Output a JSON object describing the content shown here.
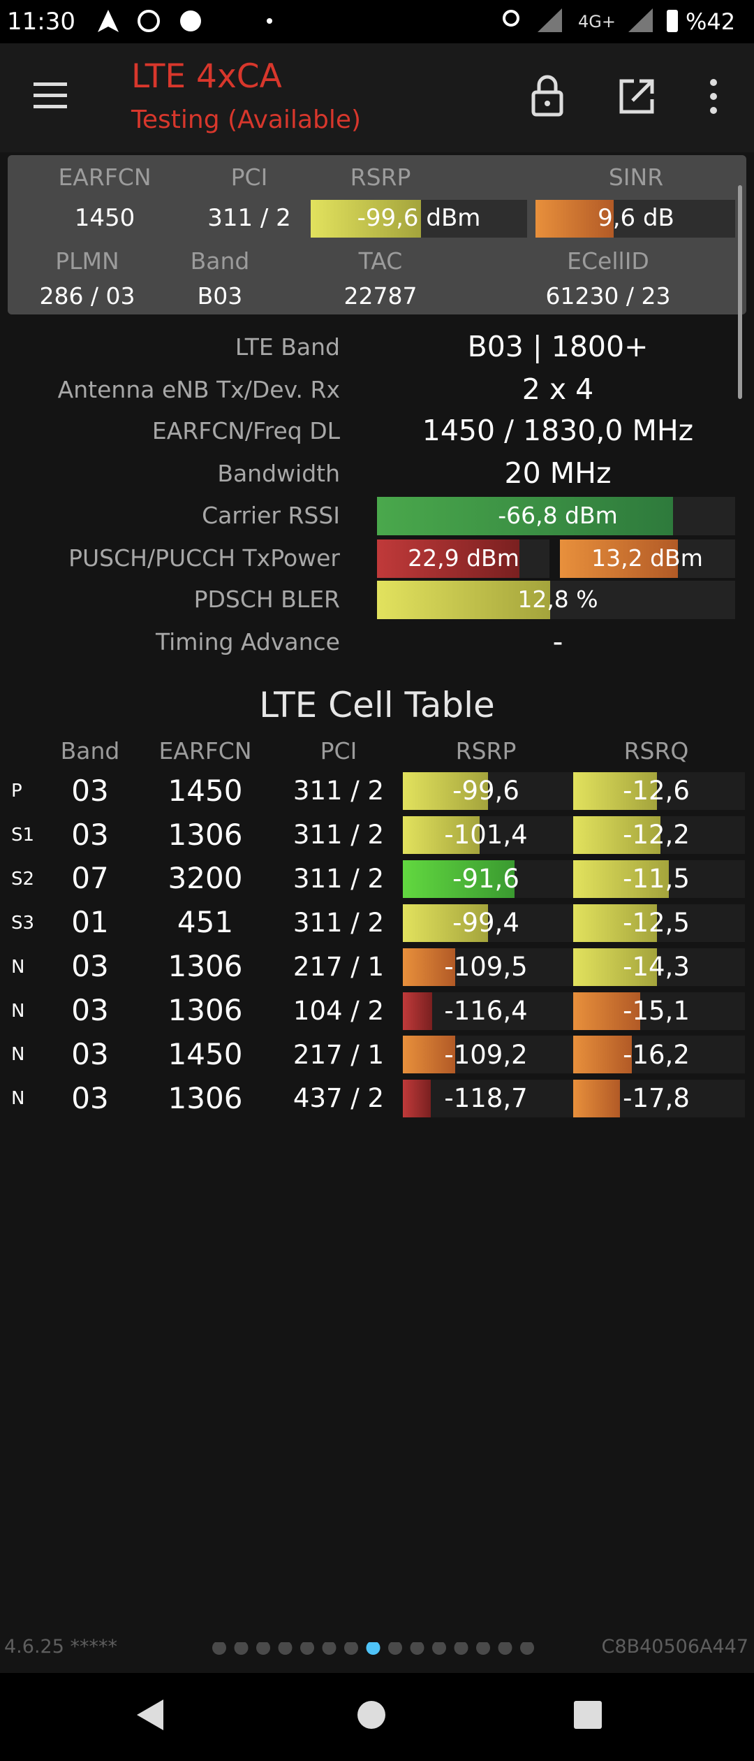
{
  "status_bar": {
    "time": "11:30",
    "network": "4G+",
    "battery": "%42"
  },
  "toolbar": {
    "title": "LTE 4xCA",
    "subtitle": "Testing (Available)"
  },
  "summary": {
    "headers": [
      "EARFCN",
      "PCI",
      "RSRP",
      "SINR"
    ],
    "values": [
      "1450",
      "311 / 2",
      "-99,6 dBm",
      "9,6 dB"
    ],
    "headers2": [
      "PLMN",
      "Band",
      "TAC",
      "ECellID"
    ],
    "values2": [
      "286 / 03",
      "B03",
      "22787",
      "61230 / 23"
    ]
  },
  "details": [
    {
      "label": "LTE Band",
      "value": "B03 | 1800+"
    },
    {
      "label": "Antenna eNB Tx/Dev. Rx",
      "value": "2 x 4"
    },
    {
      "label": "EARFCN/Freq DL",
      "value": "1450 / 1830,0 MHz"
    },
    {
      "label": "Bandwidth",
      "value": "20 MHz"
    },
    {
      "label": "Carrier RSSI",
      "value": "-66,8 dBm"
    },
    {
      "label": "PUSCH/PUCCH TxPower",
      "values": [
        "22,9 dBm",
        "13,2 dBm"
      ]
    },
    {
      "label": "PDSCH BLER",
      "value": "12,8 %"
    },
    {
      "label": "Timing Advance",
      "value": "-"
    }
  ],
  "cell_table": {
    "title": "LTE Cell Table",
    "headers": [
      "Band",
      "EARFCN",
      "PCI",
      "RSRP",
      "RSRQ"
    ],
    "rows": [
      [
        "P",
        "03",
        "1450",
        "311 / 2",
        "-99,6",
        "-12,6"
      ],
      [
        "S1",
        "03",
        "1306",
        "311 / 2",
        "-101,4",
        "-12,2"
      ],
      [
        "S2",
        "07",
        "3200",
        "311 / 2",
        "-91,6",
        "-11,5"
      ],
      [
        "S3",
        "01",
        "451",
        "311 / 2",
        "-99,4",
        "-12,5"
      ],
      [
        "N",
        "03",
        "1306",
        "217 / 1",
        "-109,5",
        "-14,3"
      ],
      [
        "N",
        "03",
        "1306",
        "104 / 2",
        "-116,4",
        "-15,1"
      ],
      [
        "N",
        "03",
        "1450",
        "217 / 1",
        "-109,2",
        "-16,2"
      ],
      [
        "N",
        "03",
        "1306",
        "437 / 2",
        "-118,7",
        "-17,8"
      ]
    ]
  },
  "footer": {
    "version": "4.6.25 *****",
    "id": "C8B40506A447"
  }
}
